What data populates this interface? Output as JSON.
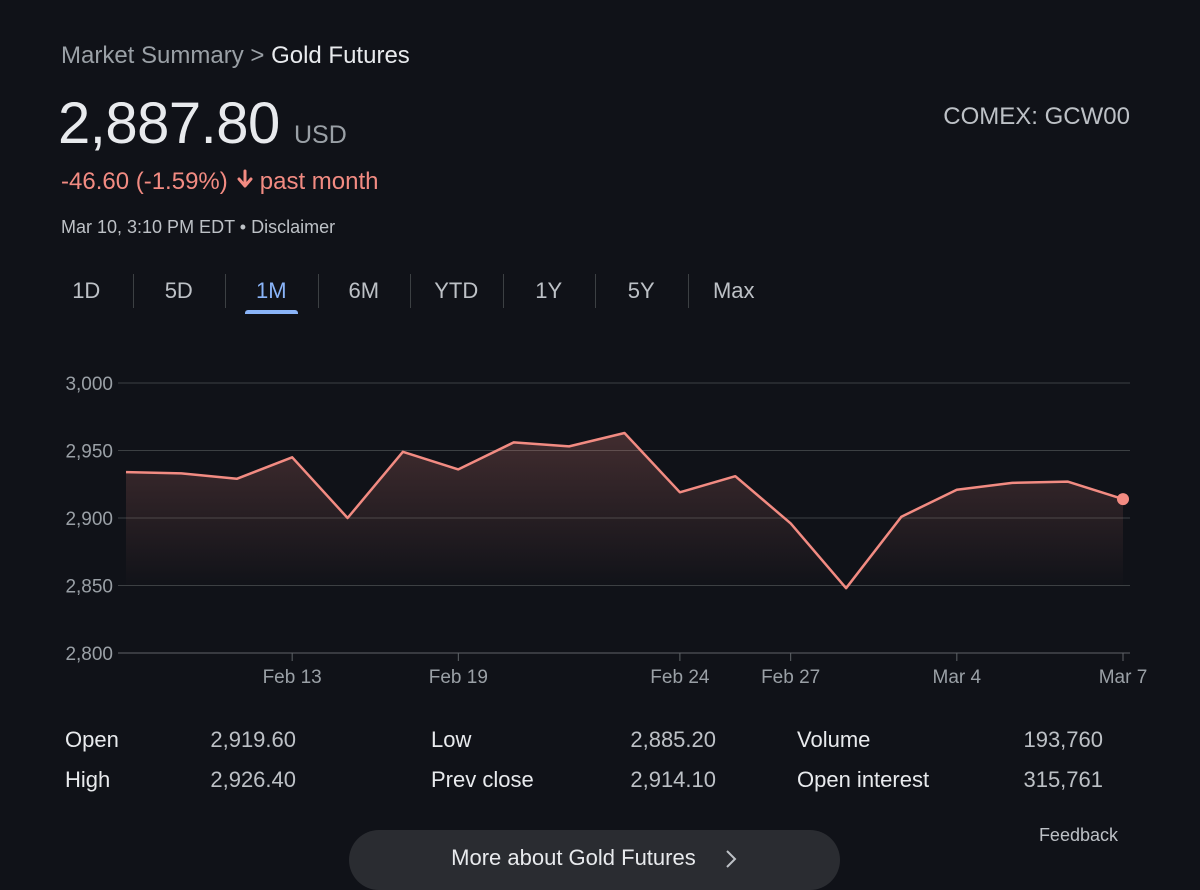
{
  "breadcrumb": {
    "parent": "Market Summary",
    "separator": ">",
    "current": "Gold Futures"
  },
  "quote": {
    "price": "2,887.80",
    "currency": "USD",
    "exchange": "COMEX: GCW00",
    "change": "-46.60 (-1.59%)",
    "period": "past month",
    "timestamp": "Mar 10, 3:10 PM EDT",
    "bullet": "•",
    "disclaimer": "Disclaimer",
    "change_color": "#f28b82"
  },
  "tabs": [
    {
      "label": "1D",
      "active": false
    },
    {
      "label": "5D",
      "active": false
    },
    {
      "label": "1M",
      "active": true
    },
    {
      "label": "6M",
      "active": false
    },
    {
      "label": "YTD",
      "active": false
    },
    {
      "label": "1Y",
      "active": false
    },
    {
      "label": "5Y",
      "active": false
    },
    {
      "label": "Max",
      "active": false
    }
  ],
  "chart_data": {
    "type": "area",
    "y_ticks": [
      "3,000",
      "2,950",
      "2,900",
      "2,850",
      "2,800"
    ],
    "ylim": [
      2800,
      3000
    ],
    "x_tick_labels": [
      "Feb 13",
      "Feb 19",
      "Feb 24",
      "Feb 27",
      "Mar 4",
      "Mar 7"
    ],
    "x_tick_index": [
      3,
      6,
      10,
      12,
      15,
      18
    ],
    "values": [
      2934,
      2933,
      2929,
      2945,
      2900,
      2949,
      2936,
      2956,
      2953,
      2963,
      2919,
      2931,
      2896,
      2848,
      2901,
      2921,
      2926,
      2927,
      2914
    ],
    "line_color": "#f28b82",
    "grid": true
  },
  "stats": [
    {
      "label": "Open",
      "value": "2,919.60"
    },
    {
      "label": "High",
      "value": "2,926.40"
    },
    {
      "label": "Low",
      "value": "2,885.20"
    },
    {
      "label": "Prev close",
      "value": "2,914.10"
    },
    {
      "label": "Volume",
      "value": "193,760"
    },
    {
      "label": "Open interest",
      "value": "315,761"
    }
  ],
  "footer": {
    "feedback": "Feedback",
    "more_button": "More about Gold Futures",
    "chevron_icon": "chevron-right-icon"
  }
}
